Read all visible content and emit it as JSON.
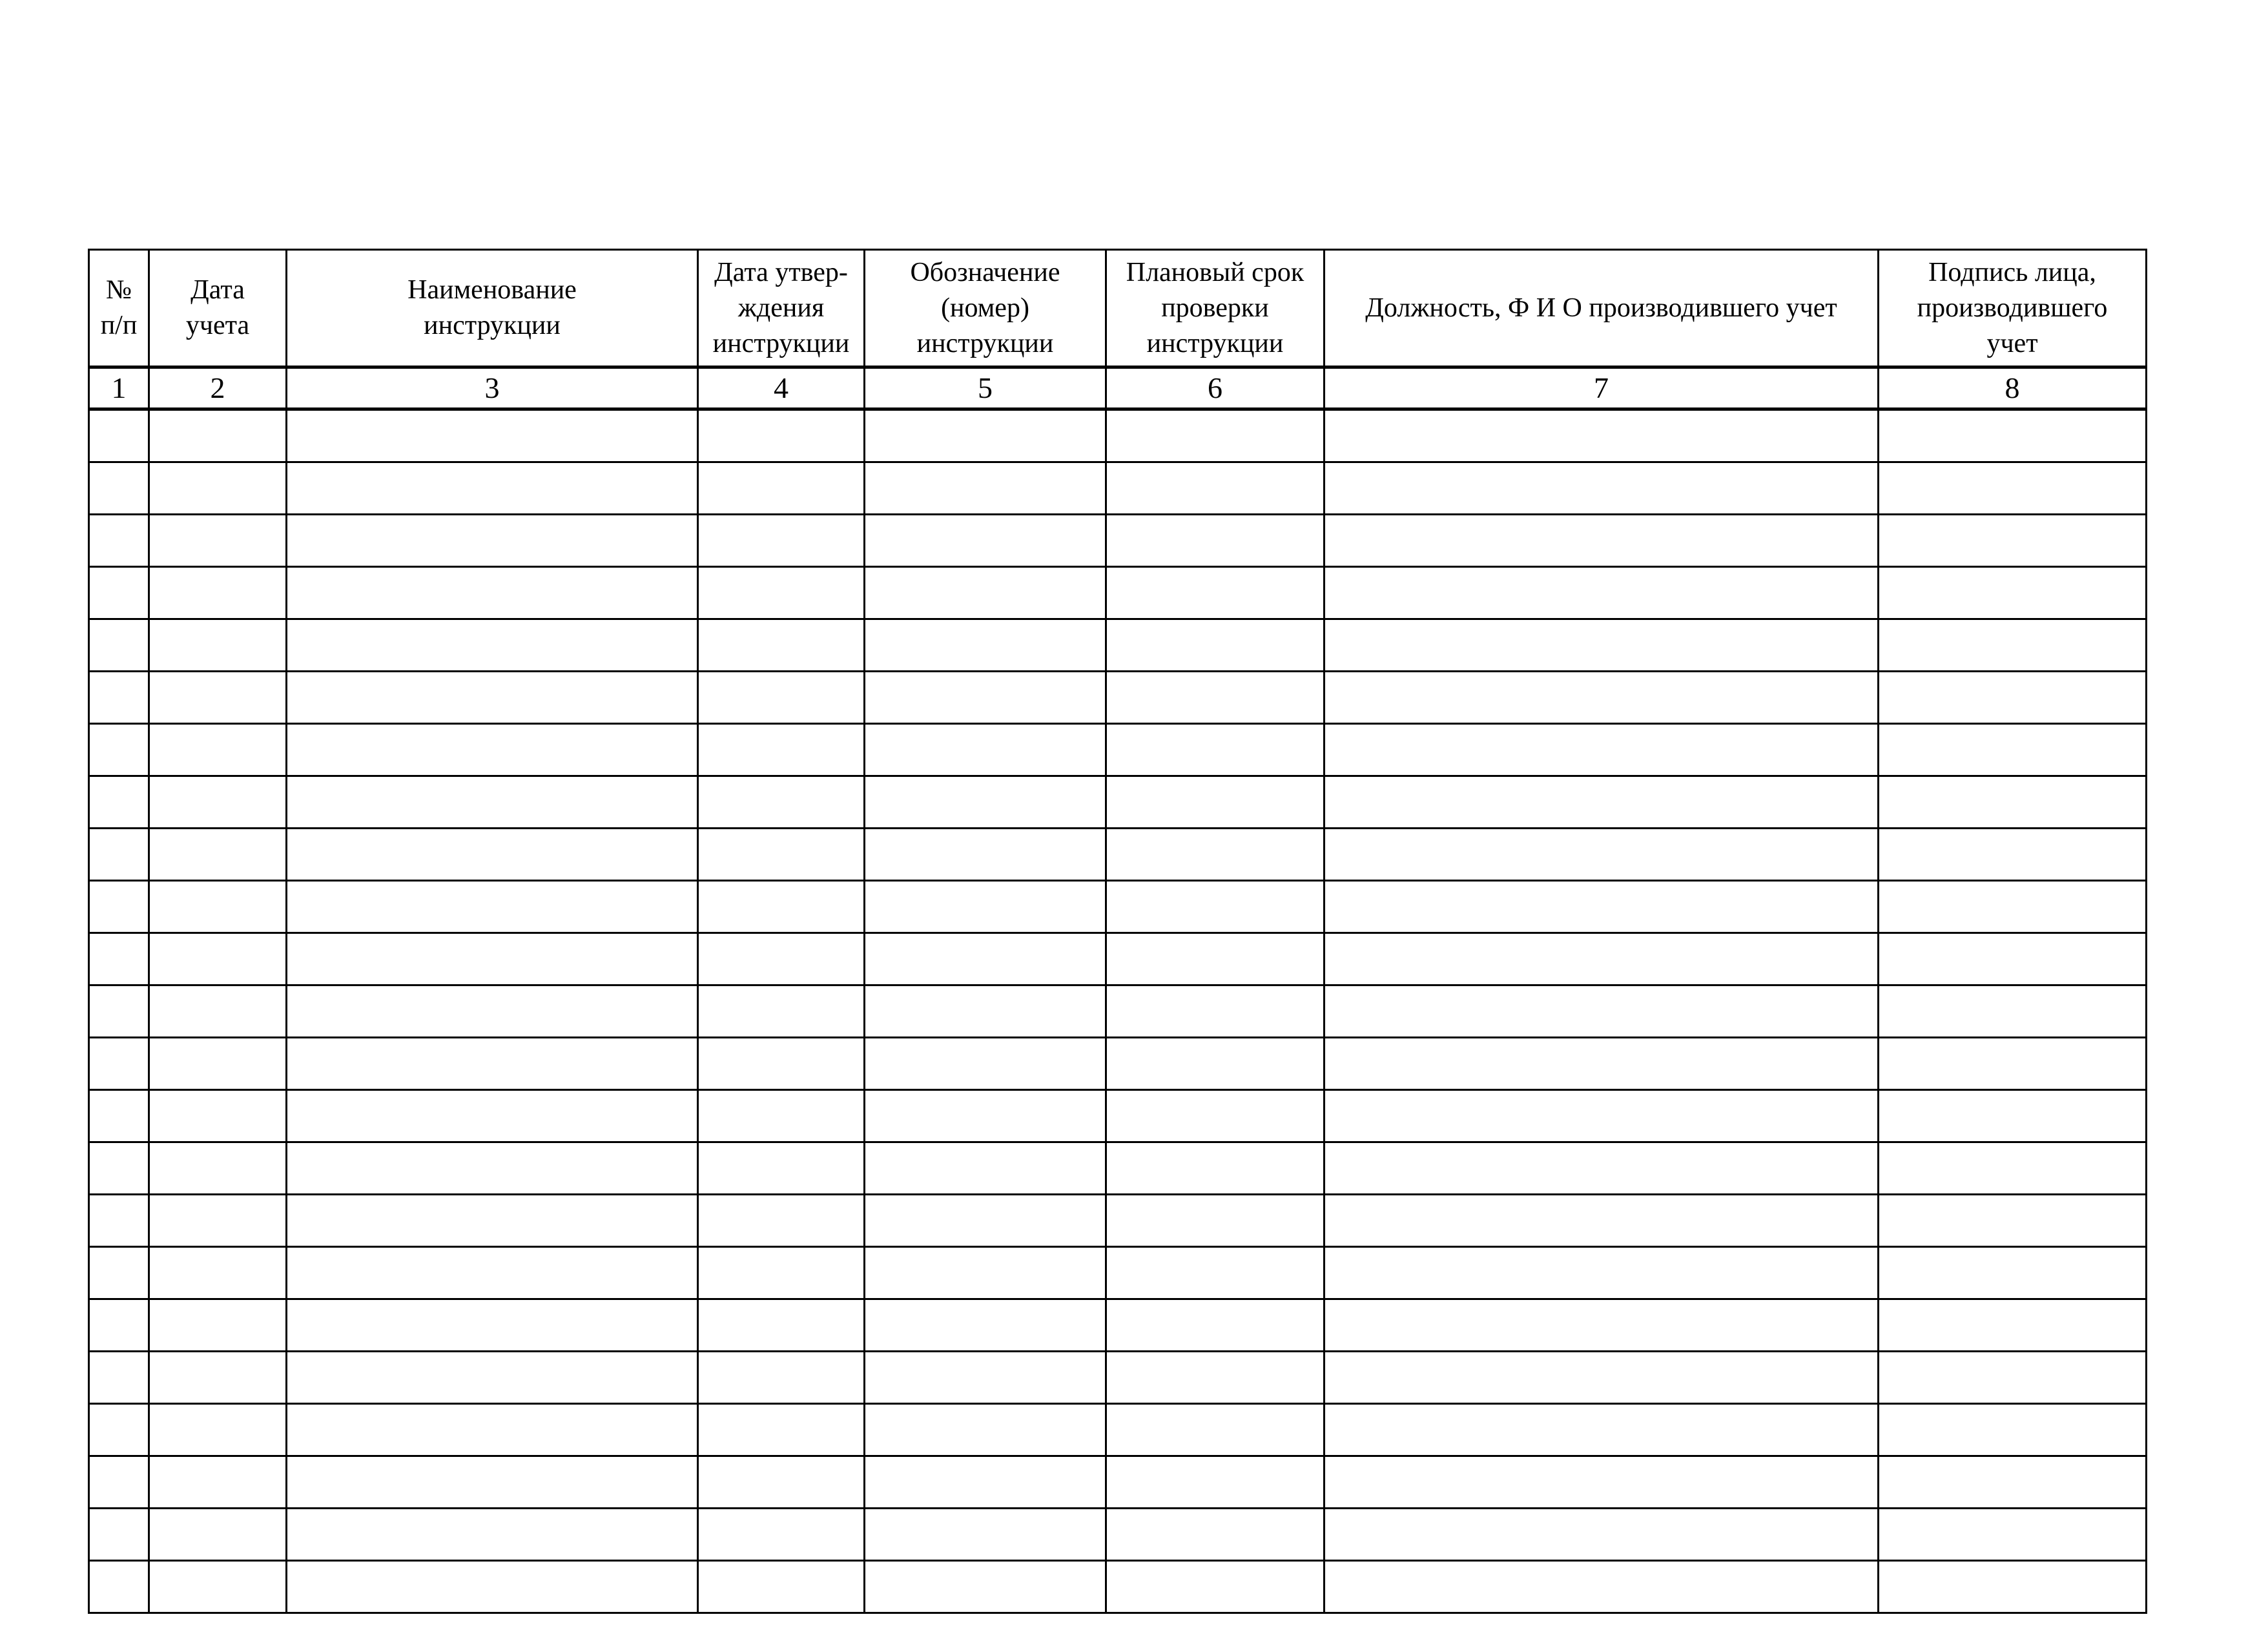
{
  "table": {
    "columns": [
      {
        "header": "№\nп/п",
        "number": "1"
      },
      {
        "header": "Дата\nучета",
        "number": "2"
      },
      {
        "header": "Наименование\nинструкции",
        "number": "3"
      },
      {
        "header": "Дата утвер-\nждения\nинструкции",
        "number": "4"
      },
      {
        "header": "Обозначение\n(номер)\nинструкции",
        "number": "5"
      },
      {
        "header": "Плановый срок\nпроверки\nинструкции",
        "number": "6"
      },
      {
        "header": "Должность, Ф И О  производившего учет",
        "number": "7"
      },
      {
        "header": "Подпись лица,\nпроизводившего\nучет",
        "number": "8"
      }
    ],
    "empty_rows": 23
  }
}
